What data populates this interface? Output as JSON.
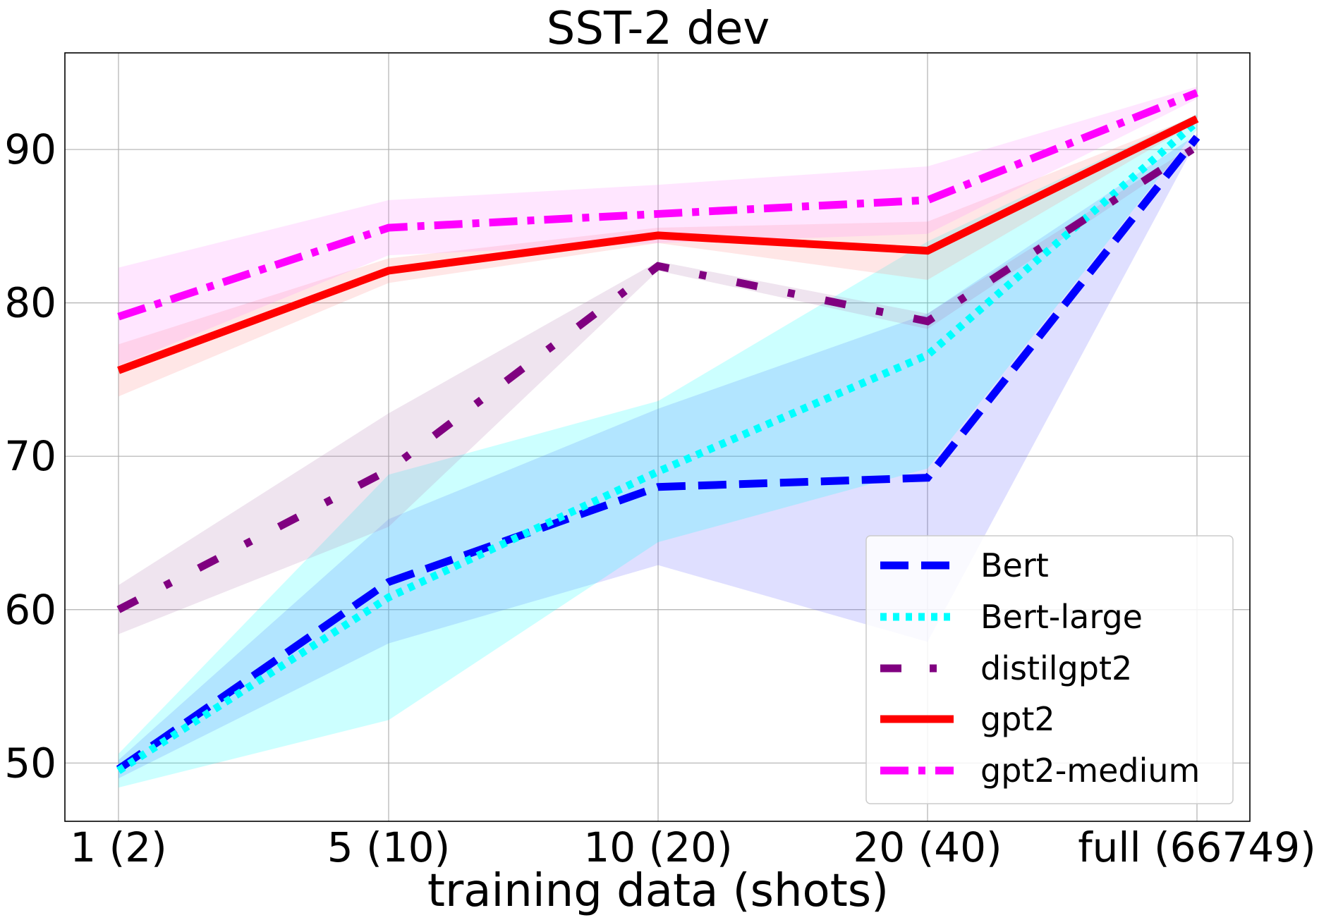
{
  "chart_data": {
    "type": "line",
    "title": "SST-2 dev",
    "xlabel": "training data (shots)",
    "ylabel": "",
    "categories": [
      "1 (2)",
      "5 (10)",
      "10 (20)",
      "20 (40)",
      "full (66749)"
    ],
    "ylim": [
      46.2,
      96.3
    ],
    "yticks": [
      50,
      60,
      70,
      80,
      90
    ],
    "grid": true,
    "legend_position": "bottom-right",
    "series": [
      {
        "name": "Bert",
        "values": [
          49.6,
          61.8,
          68.0,
          68.6,
          90.8
        ],
        "lower": [
          49.0,
          57.8,
          62.9,
          57.9,
          90.6
        ],
        "upper": [
          50.2,
          65.9,
          73.1,
          79.3,
          91.0
        ],
        "color": "#0000ff",
        "fill_color": "#6060ff",
        "style": "dashed"
      },
      {
        "name": "Bert-large",
        "values": [
          49.5,
          60.8,
          69.0,
          76.6,
          91.8
        ],
        "lower": [
          48.4,
          52.8,
          64.4,
          69.2,
          91.3
        ],
        "upper": [
          50.6,
          68.8,
          73.6,
          84.0,
          92.3
        ],
        "color": "#00ffff",
        "fill_color": "#00ffff",
        "style": "dotted"
      },
      {
        "name": "distilgpt2",
        "values": [
          60.0,
          69.1,
          82.4,
          78.8,
          90.2
        ],
        "lower": [
          58.4,
          65.4,
          82.1,
          78.3,
          90.0
        ],
        "upper": [
          61.6,
          72.8,
          82.7,
          79.3,
          90.4
        ],
        "color": "#800080",
        "fill_color": "#b07ab0",
        "style": "dashdot-sparse"
      },
      {
        "name": "gpt2",
        "values": [
          75.6,
          82.1,
          84.4,
          83.4,
          92.0
        ],
        "lower": [
          73.9,
          81.3,
          83.9,
          81.5,
          91.8
        ],
        "upper": [
          77.3,
          82.9,
          84.9,
          85.3,
          92.2
        ],
        "color": "#ff0000",
        "fill_color": "#ff8080",
        "style": "solid"
      },
      {
        "name": "gpt2-medium",
        "values": [
          79.1,
          84.9,
          85.8,
          86.7,
          93.7
        ],
        "lower": [
          75.9,
          83.1,
          83.9,
          84.5,
          93.3
        ],
        "upper": [
          82.3,
          86.7,
          87.7,
          88.9,
          94.1
        ],
        "color": "#ff00ff",
        "fill_color": "#ff80ff",
        "style": "dashdot"
      }
    ]
  }
}
